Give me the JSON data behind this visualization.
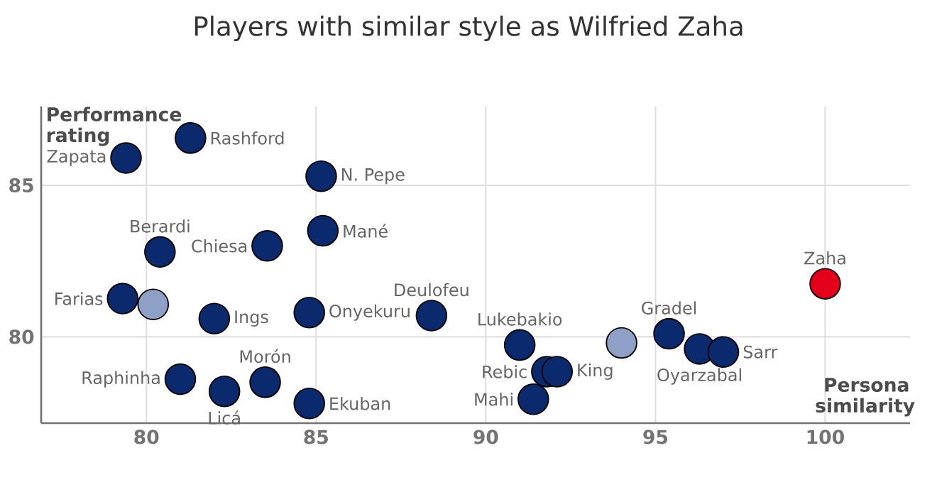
{
  "chart_data": {
    "type": "scatter",
    "title": "Players with similar style as Wilfried Zaha",
    "xlabel": "Persona similarity",
    "ylabel": "Performance rating",
    "xlim": [
      76.9,
      102.5
    ],
    "ylim": [
      77.15,
      87.6
    ],
    "xticks": [
      80,
      85,
      90,
      95,
      100
    ],
    "yticks": [
      80,
      85
    ],
    "grid": true,
    "marker": "circle",
    "series": [
      {
        "color": "#0b2a6e",
        "x": [
          81.3,
          79.4,
          85.15,
          80.4,
          83.56,
          85.2,
          79.3,
          82.0,
          84.8,
          88.4,
          81.0,
          82.3,
          83.5,
          84.8,
          91.0,
          91.8,
          92.1,
          91.4,
          95.4,
          96.3,
          97.0
        ],
        "values": [
          86.56,
          85.9,
          85.3,
          82.8,
          83.0,
          83.5,
          81.26,
          80.6,
          80.8,
          80.7,
          78.6,
          78.2,
          78.5,
          77.8,
          79.73,
          78.85,
          78.85,
          77.94,
          80.1,
          79.6,
          79.5
        ]
      },
      {
        "color": "#8fa0c6",
        "x": [
          80.2,
          94.0
        ],
        "values": [
          81.07,
          79.8
        ]
      },
      {
        "color": "#e4001b",
        "x": [
          100.0
        ],
        "values": [
          81.75
        ]
      }
    ],
    "annotations": [
      {
        "text": "Rashford",
        "x": 81.3,
        "y": 86.56
      },
      {
        "text": "Zapata",
        "x": 79.4,
        "y": 85.9
      },
      {
        "text": "N. Pepe",
        "x": 85.15,
        "y": 85.3
      },
      {
        "text": "Berardi",
        "x": 80.4,
        "y": 82.8
      },
      {
        "text": "Chiesa",
        "x": 83.56,
        "y": 83.0
      },
      {
        "text": "Mané",
        "x": 85.2,
        "y": 83.5
      },
      {
        "text": "Farias",
        "x": 79.3,
        "y": 81.26
      },
      {
        "text": "Ings",
        "x": 82.0,
        "y": 80.6
      },
      {
        "text": "Onyekuru",
        "x": 84.8,
        "y": 80.8
      },
      {
        "text": "Deulofeu",
        "x": 88.4,
        "y": 80.7
      },
      {
        "text": "Raphinha",
        "x": 81.0,
        "y": 78.6
      },
      {
        "text": "Licá",
        "x": 82.3,
        "y": 78.2
      },
      {
        "text": "Morón",
        "x": 83.5,
        "y": 78.5
      },
      {
        "text": "Ekuban",
        "x": 84.8,
        "y": 77.8
      },
      {
        "text": "Lukebakio",
        "x": 91.0,
        "y": 79.73
      },
      {
        "text": "Rebic",
        "x": 91.8,
        "y": 78.85
      },
      {
        "text": "King",
        "x": 92.1,
        "y": 78.85
      },
      {
        "text": "Mahi",
        "x": 91.4,
        "y": 77.94
      },
      {
        "text": "Gradel",
        "x": 95.4,
        "y": 80.1
      },
      {
        "text": "Oyarzabal",
        "x": 96.3,
        "y": 79.6
      },
      {
        "text": "Sarr",
        "x": 97.0,
        "y": 79.5
      },
      {
        "text": "Zaha",
        "x": 100.0,
        "y": 81.75
      }
    ]
  }
}
